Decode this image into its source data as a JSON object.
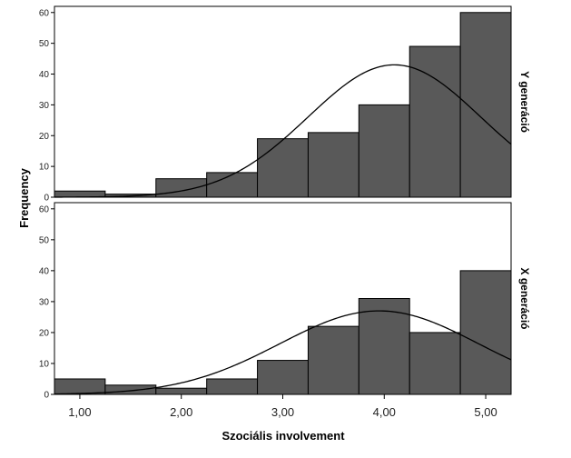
{
  "chart_data": {
    "type": "bar",
    "xlabel": "Szociális involvement",
    "ylabel": "Frequency",
    "xlim": [
      0.75,
      5.25
    ],
    "xticks": [
      {
        "value": 1,
        "label": "1,00"
      },
      {
        "value": 2,
        "label": "2,00"
      },
      {
        "value": 3,
        "label": "3,00"
      },
      {
        "value": 4,
        "label": "4,00"
      },
      {
        "value": 5,
        "label": "5,00"
      }
    ],
    "bin_edges": [
      0.75,
      1.25,
      1.75,
      2.25,
      2.75,
      3.25,
      3.75,
      4.25,
      4.75,
      5.25
    ],
    "grid": false,
    "panels": [
      {
        "label": "Y generáció",
        "ylim": [
          0,
          62
        ],
        "yticks": [
          0,
          10,
          20,
          30,
          40,
          50,
          60
        ],
        "values": [
          2,
          1,
          6,
          8,
          19,
          21,
          30,
          49,
          60
        ],
        "normal_curve": {
          "mean": 4.1,
          "sd": 0.85,
          "peak": 43
        }
      },
      {
        "label": "X generáció",
        "ylim": [
          0,
          62
        ],
        "yticks": [
          0,
          10,
          20,
          30,
          40,
          50,
          60
        ],
        "values": [
          5,
          3,
          2,
          5,
          11,
          22,
          31,
          20,
          40
        ],
        "normal_curve": {
          "mean": 3.95,
          "sd": 0.98,
          "peak": 27
        }
      }
    ],
    "bar_color": "#595959",
    "bar_edge_color": "#000000",
    "curve_color": "#000000"
  }
}
